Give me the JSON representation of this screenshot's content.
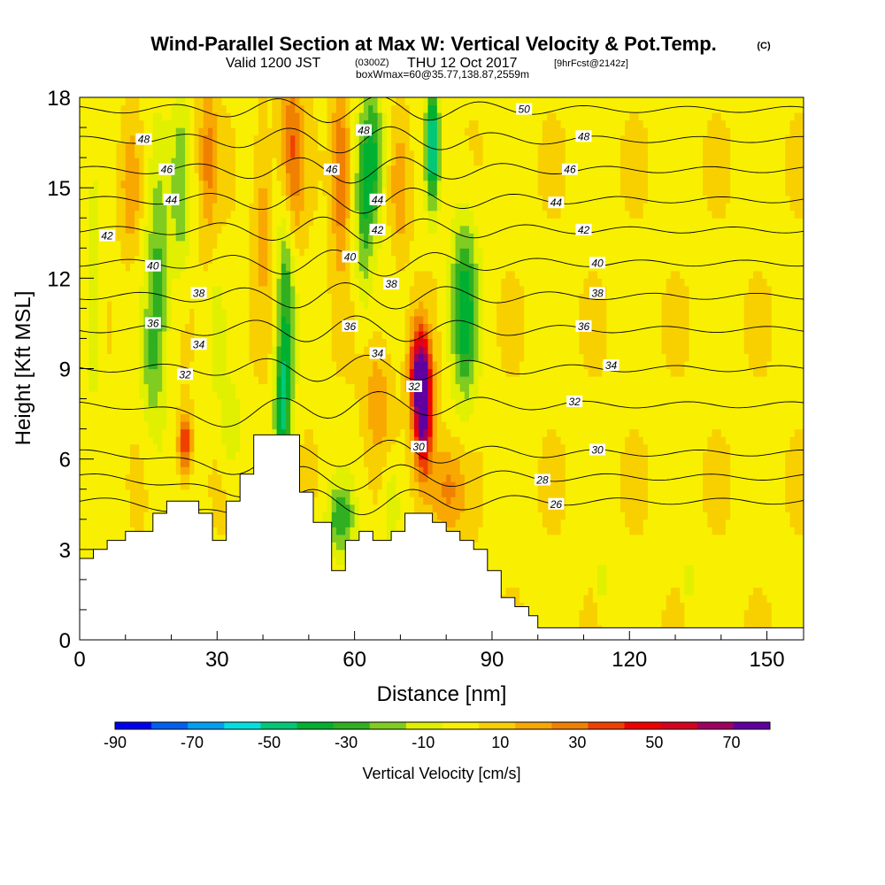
{
  "chart_data": {
    "type": "heatmap",
    "title": "Wind-Parallel Section at Max W: Vertical Velocity & Pot.Temp.",
    "title_mark": "(C)",
    "subtitle_valid": "Valid 1200 JST",
    "subtitle_utc": "(0300Z)",
    "subtitle_date": "THU 12 Oct 2017",
    "subtitle_fcst": "[9hrFcst@2142z]",
    "subtitle_box": "boxWmax=60@35.77,138.87,2559m",
    "xlabel": "Distance [nm]",
    "ylabel": "Height [Kft MSL]",
    "xlim": [
      0,
      158
    ],
    "ylim": [
      0,
      18
    ],
    "x_ticks": [
      0,
      30,
      60,
      90,
      120,
      150
    ],
    "y_ticks": [
      0,
      3,
      6,
      9,
      12,
      15,
      18
    ],
    "colorbar": {
      "title": "Vertical Velocity [cm/s]",
      "labels": [
        "-90",
        "-70",
        "-50",
        "-30",
        "-10",
        "10",
        "30",
        "50",
        "70"
      ],
      "label_values": [
        -90,
        -70,
        -50,
        -30,
        -10,
        10,
        30,
        50,
        70
      ],
      "range": [
        -90,
        80
      ],
      "colors": [
        "#0000f0",
        "#0060f0",
        "#00a0f0",
        "#00e0e0",
        "#00c878",
        "#00b030",
        "#30b020",
        "#80cc20",
        "#e0f000",
        "#f8f000",
        "#f8d000",
        "#f8a800",
        "#f08000",
        "#f04000",
        "#f00000",
        "#d80020",
        "#a00060",
        "#6000a0"
      ]
    },
    "terrain": [
      [
        0,
        2.7
      ],
      [
        3,
        2.7
      ],
      [
        3,
        3.0
      ],
      [
        6,
        3.0
      ],
      [
        6,
        3.3
      ],
      [
        10,
        3.3
      ],
      [
        10,
        3.6
      ],
      [
        16,
        3.6
      ],
      [
        16,
        4.2
      ],
      [
        19,
        4.2
      ],
      [
        19,
        4.6
      ],
      [
        26,
        4.6
      ],
      [
        26,
        4.2
      ],
      [
        29,
        4.2
      ],
      [
        29,
        3.3
      ],
      [
        32,
        3.3
      ],
      [
        32,
        4.6
      ],
      [
        35,
        4.6
      ],
      [
        35,
        5.5
      ],
      [
        38,
        5.5
      ],
      [
        38,
        6.8
      ],
      [
        48,
        6.8
      ],
      [
        48,
        4.9
      ],
      [
        51,
        4.9
      ],
      [
        51,
        3.9
      ],
      [
        55,
        3.9
      ],
      [
        55,
        2.3
      ],
      [
        58,
        2.3
      ],
      [
        58,
        3.3
      ],
      [
        61,
        3.3
      ],
      [
        61,
        3.6
      ],
      [
        64,
        3.6
      ],
      [
        64,
        3.3
      ],
      [
        68,
        3.3
      ],
      [
        68,
        3.6
      ],
      [
        71,
        3.6
      ],
      [
        71,
        4.2
      ],
      [
        77,
        4.2
      ],
      [
        77,
        3.9
      ],
      [
        80,
        3.9
      ],
      [
        80,
        3.6
      ],
      [
        83,
        3.6
      ],
      [
        83,
        3.3
      ],
      [
        86,
        3.3
      ],
      [
        86,
        3.0
      ],
      [
        89,
        3.0
      ],
      [
        89,
        2.3
      ],
      [
        92,
        2.3
      ],
      [
        92,
        1.4
      ],
      [
        95,
        1.4
      ],
      [
        95,
        1.1
      ],
      [
        98,
        1.1
      ],
      [
        98,
        0.8
      ],
      [
        100,
        0.8
      ],
      [
        100,
        0.4
      ],
      [
        158,
        0.4
      ],
      [
        158,
        0
      ]
    ],
    "velocity_features": [
      {
        "x": 3,
        "z": 11,
        "w": -15,
        "sx": 2,
        "sz": 4
      },
      {
        "x": 17,
        "z": 12,
        "w": -30,
        "sx": 2.5,
        "sz": 5
      },
      {
        "x": 22,
        "z": 15,
        "w": -25,
        "sx": 2,
        "sz": 3
      },
      {
        "x": 45,
        "z": 11,
        "w": -40,
        "sx": 2,
        "sz": 5
      },
      {
        "x": 44,
        "z": 7.5,
        "w": -35,
        "sx": 1.5,
        "sz": 2
      },
      {
        "x": 64,
        "z": 16,
        "w": -40,
        "sx": 2.5,
        "sz": 2.5
      },
      {
        "x": 62,
        "z": 14,
        "w": -25,
        "sx": 2,
        "sz": 3
      },
      {
        "x": 77,
        "z": 16.5,
        "w": -60,
        "sx": 1.5,
        "sz": 2
      },
      {
        "x": 84,
        "z": 11,
        "w": -45,
        "sx": 3,
        "sz": 3
      },
      {
        "x": 57,
        "z": 4,
        "w": -35,
        "sx": 3,
        "sz": 1.2
      },
      {
        "x": 68,
        "z": 4.5,
        "w": -20,
        "sx": 2,
        "sz": 1.5
      },
      {
        "x": 33,
        "z": 7,
        "w": -20,
        "sx": 2,
        "sz": 1.5
      },
      {
        "x": 15,
        "z": 9,
        "w": -12,
        "sx": 2,
        "sz": 2
      },
      {
        "x": 30,
        "z": 10,
        "w": -15,
        "sx": 1.5,
        "sz": 2
      },
      {
        "x": 114,
        "z": 2,
        "w": -15,
        "sx": 1,
        "sz": 1
      },
      {
        "x": 133,
        "z": 2,
        "w": -15,
        "sx": 1,
        "sz": 1
      },
      {
        "x": 75,
        "z": 7.5,
        "w": 80,
        "sx": 2,
        "sz": 2
      },
      {
        "x": 74,
        "z": 9,
        "w": 55,
        "sx": 2,
        "sz": 1.5
      },
      {
        "x": 23,
        "z": 6.5,
        "w": 45,
        "sx": 1.5,
        "sz": 1
      },
      {
        "x": 46,
        "z": 16,
        "w": 40,
        "sx": 2.5,
        "sz": 3
      },
      {
        "x": 57,
        "z": 15.5,
        "w": 35,
        "sx": 2,
        "sz": 3
      },
      {
        "x": 28,
        "z": 16,
        "w": 25,
        "sx": 2,
        "sz": 2.5
      },
      {
        "x": 11,
        "z": 15,
        "w": 20,
        "sx": 2,
        "sz": 2
      },
      {
        "x": 70,
        "z": 15,
        "w": 20,
        "sx": 2,
        "sz": 2
      },
      {
        "x": 80,
        "z": 5,
        "w": 25,
        "sx": 4,
        "sz": 1.5
      },
      {
        "x": 65,
        "z": 8,
        "w": 20,
        "sx": 3,
        "sz": 2
      },
      {
        "x": 40,
        "z": 14,
        "w": 18,
        "sx": 2,
        "sz": 3
      }
    ],
    "theta_contours": [
      {
        "value": 26,
        "base": 4.6
      },
      {
        "value": 28,
        "base": 5.4
      },
      {
        "value": 30,
        "base": 6.2
      },
      {
        "value": 32,
        "base": 7.8
      },
      {
        "value": 34,
        "base": 9.0
      },
      {
        "value": 36,
        "base": 10.3
      },
      {
        "value": 38,
        "base": 11.4
      },
      {
        "value": 40,
        "base": 12.5
      },
      {
        "value": 42,
        "base": 13.6
      },
      {
        "value": 44,
        "base": 14.6
      },
      {
        "value": 46,
        "base": 15.6
      },
      {
        "value": 48,
        "base": 16.6
      },
      {
        "value": 50,
        "base": 17.6
      }
    ],
    "contour_labels": [
      {
        "text": "48",
        "x": 14,
        "z": 16.6
      },
      {
        "text": "46",
        "x": 19,
        "z": 15.6
      },
      {
        "text": "44",
        "x": 20,
        "z": 14.6
      },
      {
        "text": "42",
        "x": 6,
        "z": 13.4
      },
      {
        "text": "40",
        "x": 16,
        "z": 12.4
      },
      {
        "text": "38",
        "x": 26,
        "z": 11.5
      },
      {
        "text": "36",
        "x": 16,
        "z": 10.5
      },
      {
        "text": "34",
        "x": 26,
        "z": 9.8
      },
      {
        "text": "32",
        "x": 23,
        "z": 8.8
      },
      {
        "text": "48",
        "x": 62,
        "z": 16.9
      },
      {
        "text": "46",
        "x": 55,
        "z": 15.6
      },
      {
        "text": "44",
        "x": 65,
        "z": 14.6
      },
      {
        "text": "42",
        "x": 65,
        "z": 13.6
      },
      {
        "text": "40",
        "x": 59,
        "z": 12.7
      },
      {
        "text": "38",
        "x": 68,
        "z": 11.8
      },
      {
        "text": "36",
        "x": 59,
        "z": 10.4
      },
      {
        "text": "34",
        "x": 65,
        "z": 9.5
      },
      {
        "text": "32",
        "x": 73,
        "z": 8.4
      },
      {
        "text": "30",
        "x": 74,
        "z": 6.4
      },
      {
        "text": "50",
        "x": 97,
        "z": 17.6
      },
      {
        "text": "48",
        "x": 110,
        "z": 16.7
      },
      {
        "text": "46",
        "x": 107,
        "z": 15.6
      },
      {
        "text": "44",
        "x": 104,
        "z": 14.5
      },
      {
        "text": "42",
        "x": 110,
        "z": 13.6
      },
      {
        "text": "40",
        "x": 113,
        "z": 12.5
      },
      {
        "text": "38",
        "x": 113,
        "z": 11.5
      },
      {
        "text": "36",
        "x": 110,
        "z": 10.4
      },
      {
        "text": "34",
        "x": 116,
        "z": 9.1
      },
      {
        "text": "32",
        "x": 108,
        "z": 7.9
      },
      {
        "text": "30",
        "x": 113,
        "z": 6.3
      },
      {
        "text": "28",
        "x": 101,
        "z": 5.3
      },
      {
        "text": "26",
        "x": 104,
        "z": 4.5
      }
    ]
  }
}
